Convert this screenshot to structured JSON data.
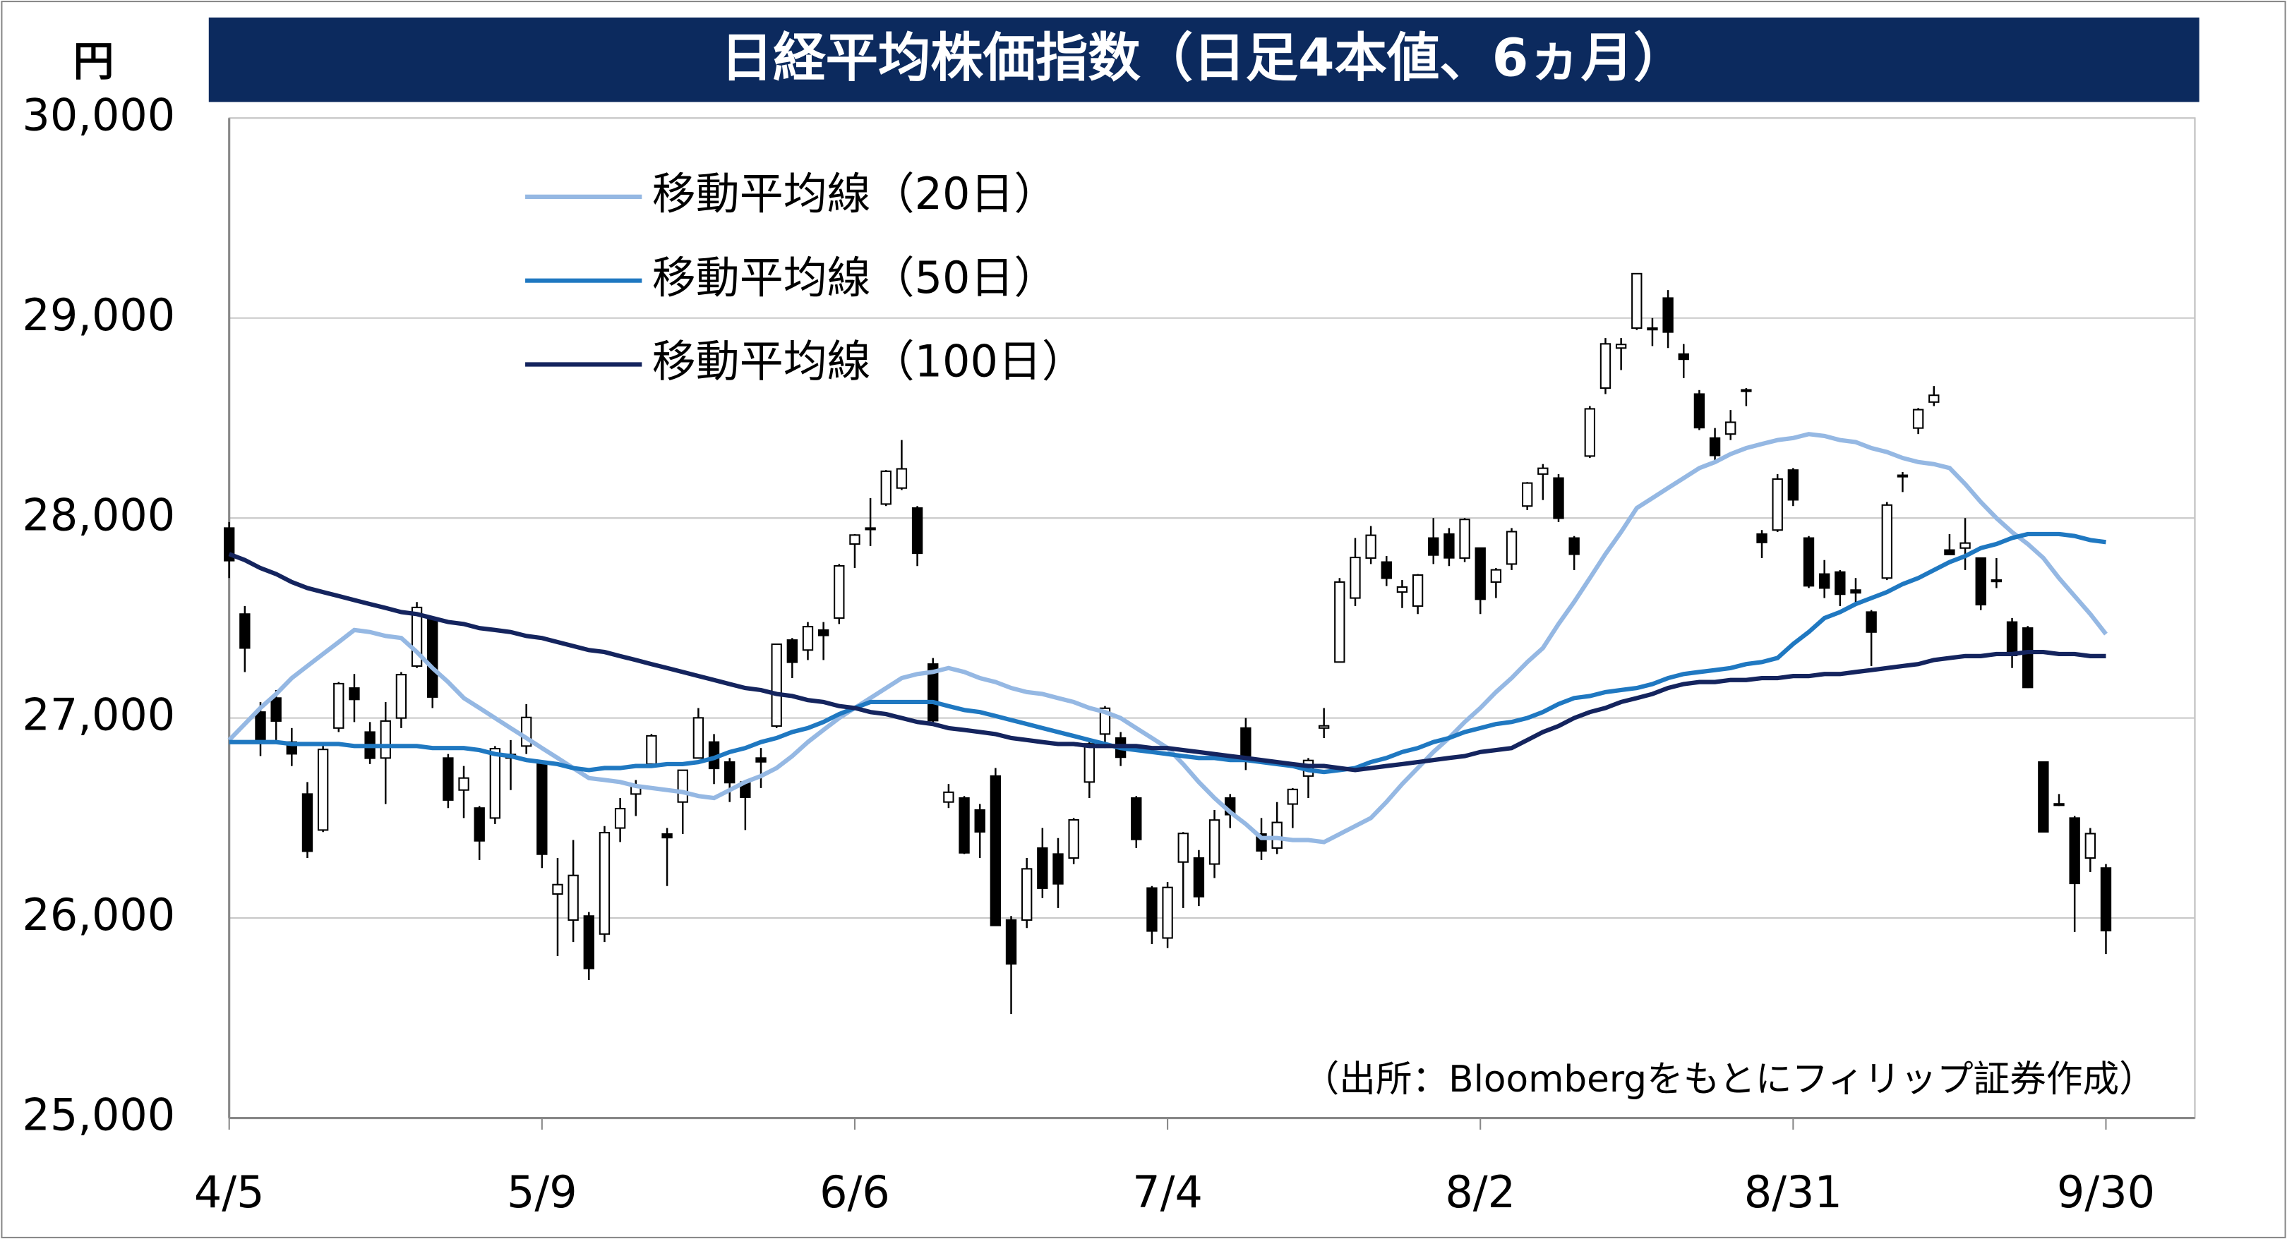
{
  "chart_data": {
    "type": "candlestick",
    "title": "日経平均株価指数（日足4本値、6ヵ月）",
    "y_label": "円",
    "source": "（出所：Bloombergをもとにフィリップ証券作成）",
    "categories": [
      "4/5",
      null,
      null,
      null,
      null,
      null,
      null,
      null,
      null,
      null,
      null,
      null,
      null,
      null,
      null,
      null,
      null,
      null,
      null,
      null,
      "5/9",
      null,
      null,
      null,
      null,
      null,
      null,
      null,
      null,
      null,
      null,
      null,
      null,
      null,
      null,
      null,
      null,
      null,
      null,
      null,
      "6/6",
      null,
      null,
      null,
      null,
      null,
      null,
      null,
      null,
      null,
      null,
      null,
      null,
      null,
      null,
      null,
      null,
      null,
      null,
      null,
      "7/4",
      null,
      null,
      null,
      null,
      null,
      null,
      null,
      null,
      null,
      null,
      null,
      null,
      null,
      null,
      null,
      null,
      null,
      null,
      null,
      "8/2",
      null,
      null,
      null,
      null,
      null,
      null,
      null,
      null,
      null,
      null,
      null,
      null,
      null,
      null,
      null,
      null,
      null,
      null,
      null,
      "8/31",
      null,
      null,
      null,
      null,
      null,
      null,
      null,
      null,
      null,
      null,
      null,
      null,
      null,
      null,
      null,
      null,
      null,
      null,
      null,
      "9/30"
    ],
    "open": [
      27950,
      27520,
      27030,
      27100,
      26880,
      26620,
      26440,
      26950,
      27150,
      26930,
      26800,
      27000,
      27260,
      27500,
      26800,
      26640,
      26550,
      26500,
      26800,
      26860,
      26780,
      26120,
      25990,
      26010,
      25920,
      26450,
      26620,
      26770,
      26420,
      26580,
      26800,
      26880,
      26780,
      26680,
      26800,
      26960,
      27390,
      27340,
      27440,
      27500,
      27870,
      27950,
      28070,
      28150,
      28050,
      27270,
      26580,
      26600,
      26540,
      26710,
      25990,
      25990,
      26350,
      26320,
      26300,
      26680,
      26920,
      26900,
      26600,
      26150,
      25900,
      26280,
      26300,
      26270,
      26600,
      26950,
      26420,
      26350,
      26570,
      26710,
      26950,
      27280,
      27600,
      27800,
      27780,
      27630,
      27560,
      27900,
      27920,
      27800,
      27850,
      27680,
      27770,
      28060,
      28220,
      28200,
      27900,
      28310,
      28650,
      28850,
      28950,
      28950,
      29100,
      28820,
      28620,
      28400,
      28420,
      28640,
      27920,
      27940,
      28240,
      27900,
      27720,
      27730,
      27640,
      27530,
      27700,
      28210,
      28450,
      28580,
      27840,
      27850,
      27800,
      27690,
      27480,
      27450,
      26780,
      26570,
      26500,
      26300,
      26250
    ],
    "high": [
      27980,
      27560,
      27080,
      27140,
      26950,
      26680,
      26860,
      27180,
      27220,
      26980,
      27080,
      27230,
      27580,
      27500,
      26820,
      26760,
      26560,
      26860,
      26890,
      27070,
      26780,
      26300,
      26390,
      26030,
      26460,
      26600,
      26690,
      26920,
      26450,
      26740,
      27050,
      26920,
      26800,
      26690,
      26850,
      27370,
      27400,
      27480,
      27480,
      27770,
      27920,
      28100,
      28240,
      28390,
      28060,
      27300,
      26670,
      26610,
      26570,
      26750,
      26010,
      26300,
      26450,
      26400,
      26500,
      26890,
      27060,
      26930,
      26610,
      26160,
      26180,
      26430,
      26340,
      26540,
      26620,
      27000,
      26500,
      26580,
      26650,
      26800,
      27050,
      27700,
      27900,
      27960,
      27810,
      27690,
      27720,
      28000,
      27950,
      28000,
      27850,
      27750,
      27950,
      28180,
      28270,
      28220,
      27910,
      28560,
      28900,
      28900,
      29220,
      29000,
      29140,
      28870,
      28640,
      28450,
      28540,
      28650,
      27940,
      28220,
      28250,
      27910,
      27790,
      27740,
      27700,
      27540,
      28080,
      28230,
      28550,
      28660,
      27920,
      28000,
      27800,
      27800,
      27500,
      27460,
      26780,
      26620,
      26510,
      26450,
      26270
    ],
    "low": [
      27700,
      27230,
      26810,
      26870,
      26760,
      26300,
      26430,
      26930,
      26980,
      26770,
      26570,
      26950,
      27250,
      27050,
      26550,
      26500,
      26290,
      26470,
      26640,
      26820,
      26250,
      25810,
      25880,
      25690,
      25880,
      26380,
      26510,
      26750,
      26160,
      26420,
      26800,
      26670,
      26580,
      26440,
      26650,
      26950,
      27200,
      27290,
      27290,
      27470,
      27750,
      27860,
      28060,
      28140,
      27760,
      26960,
      26550,
      26320,
      26300,
      25960,
      25520,
      25950,
      26100,
      26050,
      26270,
      26600,
      26850,
      26760,
      26350,
      25870,
      25850,
      26050,
      26060,
      26200,
      26450,
      26740,
      26290,
      26320,
      26450,
      26600,
      26900,
      27280,
      27560,
      27770,
      27660,
      27550,
      27520,
      27770,
      27760,
      27780,
      27520,
      27600,
      27740,
      28040,
      28090,
      27980,
      27740,
      28300,
      28620,
      28740,
      28940,
      28860,
      28850,
      28700,
      28440,
      28280,
      28390,
      28560,
      27800,
      27930,
      28060,
      27650,
      27600,
      27560,
      27580,
      27260,
      27690,
      28130,
      28420,
      28560,
      27820,
      27740,
      27540,
      27650,
      27250,
      27150,
      26430,
      26560,
      25930,
      26230,
      25820
    ],
    "close": [
      27787,
      27350,
      26888,
      26985,
      26821,
      26334,
      26843,
      27172,
      27093,
      26799,
      26985,
      27217,
      27553,
      27105,
      26590,
      26700,
      26386,
      26847,
      26818,
      27003,
      26319,
      26167,
      26213,
      25748,
      26427,
      26547,
      26659,
      26911,
      26402,
      26739,
      27001,
      26748,
      26677,
      26604,
      26781,
      27369,
      27279,
      27457,
      27413,
      27761,
      27915,
      27943,
      28234,
      28246,
      27824,
      26987,
      26629,
      26326,
      26431,
      25963,
      25771,
      26246,
      26149,
      26171,
      26491,
      26871,
      27049,
      26804,
      26393,
      25935,
      26153,
      26423,
      26107,
      26490,
      26517,
      26812,
      26336,
      26478,
      26643,
      26788,
      26961,
      27680,
      27803,
      27914,
      27699,
      27655,
      27715,
      27815,
      27801,
      27993,
      27594,
      27741,
      27932,
      28175,
      28249,
      27999,
      27819,
      28546,
      28871,
      28868,
      29222,
      28942,
      28930,
      28794,
      28452,
      28313,
      28479,
      28641,
      27878,
      28195,
      28091,
      27661,
      27650,
      27619,
      27626,
      27430,
      28065,
      28214,
      28542,
      28614,
      27818,
      27875,
      27567,
      27688,
      27313,
      27153,
      26431,
      26571,
      26173,
      26422,
      25937
    ],
    "series": [
      {
        "name": "移動平均線（20日）",
        "color": "#95b8e3",
        "values": [
          26890,
          26970,
          27050,
          27120,
          27200,
          27260,
          27320,
          27380,
          27440,
          27430,
          27410,
          27400,
          27330,
          27250,
          27180,
          27100,
          27050,
          27000,
          26950,
          26900,
          26850,
          26800,
          26750,
          26700,
          26690,
          26680,
          26660,
          26650,
          26640,
          26630,
          26610,
          26600,
          26640,
          26680,
          26710,
          26750,
          26810,
          26880,
          26940,
          27000,
          27050,
          27100,
          27150,
          27200,
          27220,
          27230,
          27250,
          27230,
          27200,
          27180,
          27150,
          27130,
          27120,
          27100,
          27080,
          27050,
          27030,
          27000,
          26950,
          26900,
          26850,
          26770,
          26680,
          26600,
          26530,
          26470,
          26400,
          26400,
          26390,
          26390,
          26380,
          26420,
          26460,
          26500,
          26580,
          26670,
          26750,
          26830,
          26900,
          26980,
          27050,
          27130,
          27200,
          27280,
          27350,
          27470,
          27580,
          27700,
          27820,
          27930,
          28050,
          28100,
          28150,
          28200,
          28250,
          28280,
          28320,
          28350,
          28370,
          28390,
          28400,
          28420,
          28410,
          28390,
          28380,
          28350,
          28330,
          28300,
          28280,
          28270,
          28250,
          28170,
          28080,
          28000,
          27930,
          27870,
          27800,
          27700,
          27610,
          27520,
          27420
        ]
      },
      {
        "name": "移動平均線（50日）",
        "color": "#1f78c1",
        "values": [
          26880,
          26880,
          26880,
          26880,
          26870,
          26870,
          26870,
          26870,
          26860,
          26860,
          26860,
          26860,
          26860,
          26850,
          26850,
          26850,
          26840,
          26820,
          26810,
          26790,
          26780,
          26770,
          26750,
          26740,
          26750,
          26750,
          26760,
          26760,
          26770,
          26770,
          26780,
          26800,
          26830,
          26850,
          26880,
          26900,
          26930,
          26950,
          26980,
          27020,
          27050,
          27080,
          27080,
          27080,
          27080,
          27080,
          27060,
          27040,
          27030,
          27010,
          26990,
          26970,
          26950,
          26930,
          26910,
          26890,
          26870,
          26850,
          26840,
          26830,
          26820,
          26810,
          26800,
          26800,
          26790,
          26790,
          26780,
          26770,
          26760,
          26740,
          26730,
          26740,
          26750,
          26780,
          26800,
          26830,
          26850,
          26880,
          26900,
          26930,
          26950,
          26970,
          26980,
          27000,
          27030,
          27070,
          27100,
          27110,
          27130,
          27140,
          27150,
          27170,
          27200,
          27220,
          27230,
          27240,
          27250,
          27270,
          27280,
          27300,
          27370,
          27430,
          27500,
          27530,
          27570,
          27600,
          27630,
          27670,
          27700,
          27740,
          27780,
          27810,
          27850,
          27870,
          27900,
          27920,
          27920,
          27920,
          27910,
          27890,
          27880
        ]
      },
      {
        "name": "移動平均線（100日）",
        "color": "#14245e",
        "values": [
          27820,
          27790,
          27750,
          27720,
          27680,
          27650,
          27630,
          27610,
          27590,
          27570,
          27550,
          27530,
          27520,
          27500,
          27480,
          27470,
          27450,
          27440,
          27430,
          27410,
          27400,
          27380,
          27360,
          27340,
          27330,
          27310,
          27290,
          27270,
          27250,
          27230,
          27210,
          27190,
          27170,
          27150,
          27140,
          27120,
          27110,
          27090,
          27080,
          27060,
          27050,
          27030,
          27020,
          27000,
          26980,
          26970,
          26950,
          26940,
          26930,
          26920,
          26900,
          26890,
          26880,
          26870,
          26870,
          26860,
          26860,
          26860,
          26860,
          26850,
          26850,
          26840,
          26830,
          26820,
          26810,
          26800,
          26790,
          26780,
          26770,
          26760,
          26760,
          26750,
          26740,
          26750,
          26760,
          26770,
          26780,
          26790,
          26800,
          26810,
          26830,
          26840,
          26850,
          26890,
          26930,
          26960,
          27000,
          27030,
          27050,
          27080,
          27100,
          27120,
          27150,
          27170,
          27180,
          27180,
          27190,
          27190,
          27200,
          27200,
          27210,
          27210,
          27220,
          27220,
          27230,
          27240,
          27250,
          27260,
          27270,
          27290,
          27300,
          27310,
          27310,
          27320,
          27320,
          27330,
          27330,
          27320,
          27320,
          27310,
          27310
        ]
      }
    ],
    "ylim": [
      25000,
      30000
    ],
    "yticks": [
      {
        "value": 25000,
        "label": "25,000"
      },
      {
        "value": 26000,
        "label": "26,000"
      },
      {
        "value": 27000,
        "label": "27,000"
      },
      {
        "value": 28000,
        "label": "28,000"
      },
      {
        "value": 29000,
        "label": "29,000"
      },
      {
        "value": 30000,
        "label": "30,000"
      }
    ],
    "grid": true,
    "up_color": "#ffffff",
    "down_color": "#000000",
    "title_color": "#0c2a5e"
  }
}
